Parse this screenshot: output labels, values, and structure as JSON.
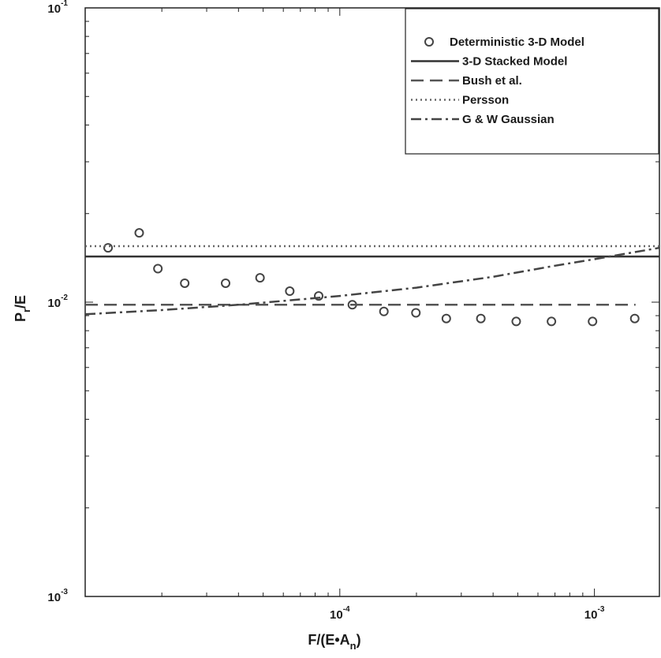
{
  "chart_data": {
    "type": "scatter",
    "xscale": "log",
    "yscale": "log",
    "xlim": [
      1e-05,
      0.0018
    ],
    "ylim": [
      0.001,
      0.1
    ],
    "xlabel_main": "F/(E•A",
    "xlabel_sub": "n",
    "xlabel_close": ")",
    "ylabel_main": "P",
    "ylabel_sub": "r",
    "ylabel_close": "/E",
    "x_ticks": [
      {
        "value": 0.0001,
        "base": "10",
        "exp": "-4"
      },
      {
        "value": 0.001,
        "base": "10",
        "exp": "-3"
      }
    ],
    "y_ticks": [
      {
        "value": 0.001,
        "base": "10",
        "exp": "-3"
      },
      {
        "value": 0.01,
        "base": "10",
        "exp": "-2"
      },
      {
        "value": 0.1,
        "base": "10",
        "exp": "-1"
      }
    ],
    "legend_position": "top-right",
    "series": [
      {
        "name": "Deterministic 3-D Model",
        "style": "markers",
        "color": "#444444",
        "points": [
          [
            1.23e-05,
            0.0153
          ],
          [
            1.63e-05,
            0.0172
          ],
          [
            1.93e-05,
            0.013
          ],
          [
            2.46e-05,
            0.0116
          ],
          [
            3.56e-05,
            0.0116
          ],
          [
            4.86e-05,
            0.0121
          ],
          [
            6.36e-05,
            0.0109
          ],
          [
            8.26e-05,
            0.0105
          ],
          [
            0.000112,
            0.0098
          ],
          [
            0.000149,
            0.0093
          ],
          [
            0.000199,
            0.0092
          ],
          [
            0.000262,
            0.0088
          ],
          [
            0.000358,
            0.0088
          ],
          [
            0.000493,
            0.0086
          ],
          [
            0.000678,
            0.0086
          ],
          [
            0.000983,
            0.0086
          ],
          [
            0.00144,
            0.0088
          ]
        ]
      },
      {
        "name": "3-D Stacked Model",
        "style": "solid",
        "color": "#333333",
        "points": [
          [
            1e-05,
            0.0143
          ],
          [
            0.0018,
            0.0143
          ]
        ]
      },
      {
        "name": "Bush et al.",
        "style": "dashed",
        "color": "#555555",
        "points": [
          [
            1e-05,
            0.0098
          ],
          [
            0.00145,
            0.0098
          ]
        ]
      },
      {
        "name": "Persson",
        "style": "dotted",
        "color": "#666666",
        "points": [
          [
            1e-05,
            0.0155
          ],
          [
            0.0018,
            0.0155
          ]
        ]
      },
      {
        "name": "G & W Gaussian",
        "style": "dashdot",
        "color": "#444444",
        "points": [
          [
            1e-05,
            0.0091
          ],
          [
            2e-05,
            0.0094
          ],
          [
            4e-05,
            0.0098
          ],
          [
            6e-05,
            0.0101
          ],
          [
            0.0001,
            0.0105
          ],
          [
            0.0002,
            0.0112
          ],
          [
            0.0004,
            0.0122
          ],
          [
            0.0007,
            0.0133
          ],
          [
            0.001,
            0.014
          ],
          [
            0.0018,
            0.0153
          ]
        ]
      }
    ]
  }
}
